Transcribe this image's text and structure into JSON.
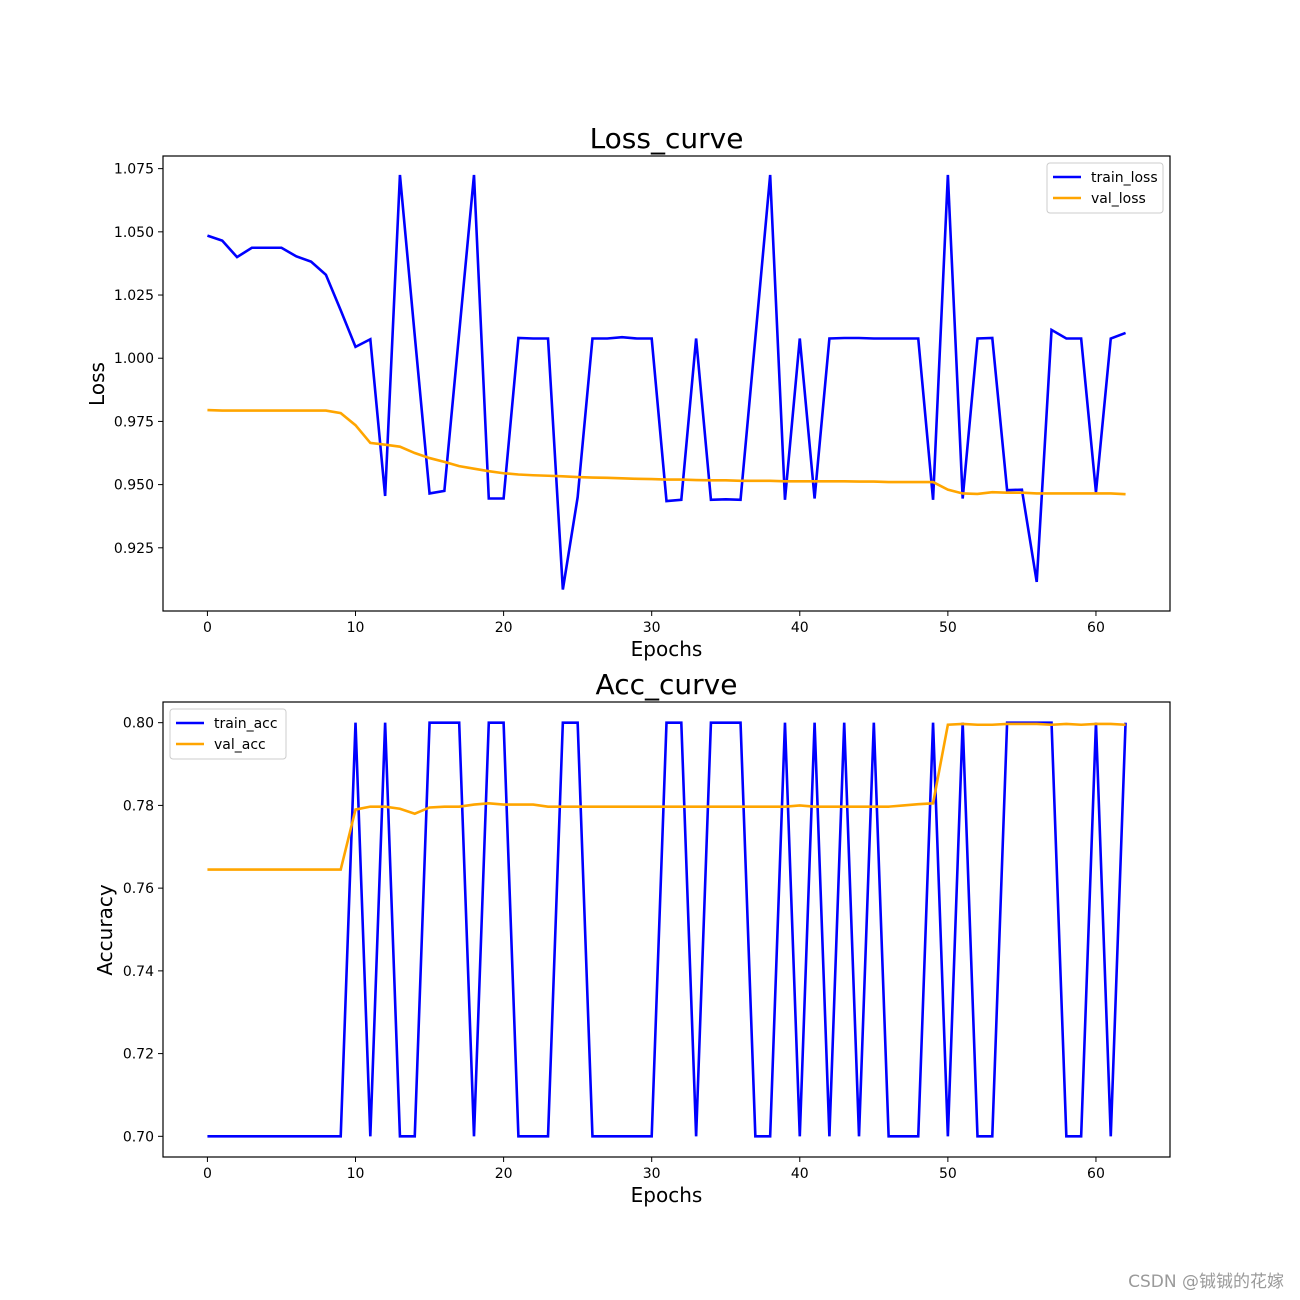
{
  "chart_data": [
    {
      "type": "line",
      "title": "Loss_curve",
      "xlabel": "Epochs",
      "ylabel": "Loss",
      "xlim": [
        -3,
        65
      ],
      "ylim": [
        0.9,
        1.08
      ],
      "xticks": [
        0,
        10,
        20,
        30,
        40,
        50,
        60
      ],
      "yticks": [
        0.925,
        0.95,
        0.975,
        1.0,
        1.025,
        1.05,
        1.075
      ],
      "ytick_labels": [
        "0.925",
        "0.950",
        "0.975",
        "1.000",
        "1.025",
        "1.050",
        "1.075"
      ],
      "legend_position": "top-right",
      "grid": false,
      "series": [
        {
          "name": "train_loss",
          "color": "#0000ff",
          "values": [
            1.0485,
            1.0465,
            1.04,
            1.0437,
            1.0437,
            1.0437,
            1.0403,
            1.0382,
            1.033,
            1.019,
            1.0045,
            1.0075,
            0.9455,
            1.0725,
            1.009,
            0.9465,
            0.9475,
            1.01,
            1.0725,
            0.9445,
            0.9445,
            1.008,
            1.0078,
            1.0078,
            0.9085,
            0.945,
            1.0078,
            1.0078,
            1.0083,
            1.0078,
            1.0078,
            0.9435,
            0.944,
            1.0078,
            0.944,
            0.9442,
            0.944,
            1.008,
            1.0725,
            0.944,
            1.0078,
            0.9445,
            1.0078,
            1.008,
            1.008,
            1.0078,
            1.0078,
            1.0078,
            1.0078,
            0.944,
            1.0725,
            0.9445,
            1.0078,
            1.008,
            0.9478,
            0.948,
            0.9115,
            1.0112,
            1.0078,
            1.0078,
            0.947,
            1.0078,
            1.01
          ]
        },
        {
          "name": "val_loss",
          "color": "#ffa500",
          "values": [
            0.9795,
            0.9793,
            0.9793,
            0.9793,
            0.9793,
            0.9793,
            0.9793,
            0.9793,
            0.9793,
            0.9783,
            0.9735,
            0.9665,
            0.9658,
            0.965,
            0.9625,
            0.9605,
            0.959,
            0.9573,
            0.9563,
            0.9553,
            0.9545,
            0.954,
            0.9537,
            0.9535,
            0.9533,
            0.953,
            0.9528,
            0.9527,
            0.9525,
            0.9523,
            0.9522,
            0.952,
            0.952,
            0.9518,
            0.9517,
            0.9517,
            0.9515,
            0.9515,
            0.9515,
            0.9513,
            0.9513,
            0.9513,
            0.9513,
            0.9513,
            0.9512,
            0.9512,
            0.951,
            0.951,
            0.951,
            0.951,
            0.948,
            0.9465,
            0.9463,
            0.947,
            0.9468,
            0.9468,
            0.9465,
            0.9465,
            0.9465,
            0.9465,
            0.9465,
            0.9465,
            0.9462
          ]
        }
      ]
    },
    {
      "type": "line",
      "title": "Acc_curve",
      "xlabel": "Epochs",
      "ylabel": "Accuracy",
      "xlim": [
        -3,
        65
      ],
      "ylim": [
        0.695,
        0.805
      ],
      "xticks": [
        0,
        10,
        20,
        30,
        40,
        50,
        60
      ],
      "yticks": [
        0.7,
        0.72,
        0.74,
        0.76,
        0.78,
        0.8
      ],
      "ytick_labels": [
        "0.70",
        "0.72",
        "0.74",
        "0.76",
        "0.78",
        "0.80"
      ],
      "legend_position": "top-left",
      "grid": false,
      "series": [
        {
          "name": "train_acc",
          "color": "#0000ff",
          "values": [
            0.7,
            0.7,
            0.7,
            0.7,
            0.7,
            0.7,
            0.7,
            0.7,
            0.7,
            0.7,
            0.8,
            0.7,
            0.8,
            0.7,
            0.7,
            0.8,
            0.8,
            0.8,
            0.7,
            0.8,
            0.8,
            0.7,
            0.7,
            0.7,
            0.8,
            0.8,
            0.7,
            0.7,
            0.7,
            0.7,
            0.7,
            0.8,
            0.8,
            0.7,
            0.8,
            0.8,
            0.8,
            0.7,
            0.7,
            0.8,
            0.7,
            0.8,
            0.7,
            0.8,
            0.7,
            0.8,
            0.7,
            0.7,
            0.7,
            0.8,
            0.7,
            0.8,
            0.7,
            0.7,
            0.8,
            0.8,
            0.8,
            0.8,
            0.7,
            0.7,
            0.8,
            0.7,
            0.8
          ]
        },
        {
          "name": "val_acc",
          "color": "#ffa500",
          "values": [
            0.7645,
            0.7645,
            0.7645,
            0.7645,
            0.7645,
            0.7645,
            0.7645,
            0.7645,
            0.7645,
            0.7645,
            0.779,
            0.7797,
            0.7797,
            0.7792,
            0.778,
            0.7795,
            0.7797,
            0.7797,
            0.7802,
            0.7805,
            0.7802,
            0.7802,
            0.7802,
            0.7797,
            0.7797,
            0.7797,
            0.7797,
            0.7797,
            0.7797,
            0.7797,
            0.7797,
            0.7797,
            0.7797,
            0.7797,
            0.7797,
            0.7797,
            0.7797,
            0.7797,
            0.7797,
            0.7797,
            0.78,
            0.7797,
            0.7797,
            0.7797,
            0.7797,
            0.7797,
            0.7797,
            0.78,
            0.7803,
            0.7805,
            0.7995,
            0.7997,
            0.7995,
            0.7995,
            0.7997,
            0.7997,
            0.7997,
            0.7995,
            0.7997,
            0.7995,
            0.7997,
            0.7997,
            0.7995
          ]
        }
      ]
    }
  ],
  "watermark": "CSDN @铖铖的花嫁"
}
